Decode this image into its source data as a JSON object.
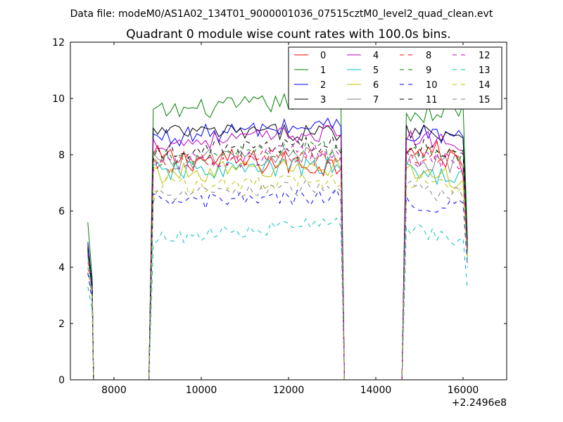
{
  "chart_data": {
    "type": "line",
    "suptitle": "Data file: modeM0/AS1A02_134T01_9000001036_07515cztM0_level2_quad_clean.evt",
    "title": "Quadrant 0 module wise count rates with 100.0s bins.",
    "xlabel": "",
    "ylabel": "",
    "x_offset_label": "+2.2496e8",
    "xlim": [
      7000,
      17000
    ],
    "ylim": [
      0,
      12
    ],
    "xticks": [
      8000,
      10000,
      12000,
      14000,
      16000
    ],
    "xtick_labels": [
      "8000",
      "10000",
      "12000",
      "14000",
      "16000"
    ],
    "yticks": [
      0,
      2,
      4,
      6,
      8,
      10,
      12
    ],
    "ytick_labels": [
      "0",
      "2",
      "4",
      "6",
      "8",
      "10",
      "12"
    ],
    "grid": false,
    "legend_position": "top-right",
    "bin_width_s": 100,
    "segments": [
      {
        "start": 7400,
        "end": 7500
      },
      {
        "start": 8900,
        "end": 13200
      },
      {
        "start": 14700,
        "end": 16100
      }
    ],
    "series": [
      {
        "name": "0",
        "color": "#ff0000",
        "style": "solid",
        "seg1": [
          4.8,
          3.2
        ],
        "seg2": [
          7.9,
          7.6
        ],
        "seg2_noise": 0.45,
        "seg3": [
          8.5,
          7.6
        ],
        "seg3_last": 4.6
      },
      {
        "name": "1",
        "color": "#008000",
        "style": "solid",
        "seg1": [
          5.6,
          3.6
        ],
        "seg2": [
          9.5,
          10.0
        ],
        "seg2_noise": 0.35,
        "seg3": [
          9.4,
          9.6
        ],
        "seg3_last": 5.0
      },
      {
        "name": "2",
        "color": "#0000ff",
        "style": "solid",
        "seg1": [
          4.9,
          3.4
        ],
        "seg2": [
          8.6,
          9.1
        ],
        "seg2_noise": 0.35,
        "seg3": [
          8.8,
          8.6
        ],
        "seg3_last": 4.8
      },
      {
        "name": "3",
        "color": "#000000",
        "style": "solid",
        "seg1": [
          4.7,
          3.3
        ],
        "seg2": [
          8.8,
          8.8
        ],
        "seg2_noise": 0.3,
        "seg3": [
          8.9,
          8.7
        ],
        "seg3_last": 4.7
      },
      {
        "name": "4",
        "color": "#bf00bf",
        "style": "solid",
        "seg1": [
          4.6,
          3.2
        ],
        "seg2": [
          8.4,
          8.8
        ],
        "seg2_noise": 0.3,
        "seg3": [
          8.6,
          8.4
        ],
        "seg3_last": 4.5
      },
      {
        "name": "5",
        "color": "#00bfbf",
        "style": "solid",
        "seg1": [
          4.4,
          3.0
        ],
        "seg2": [
          7.4,
          7.6
        ],
        "seg2_noise": 0.35,
        "seg3": [
          7.4,
          7.2
        ],
        "seg3_last": 4.3
      },
      {
        "name": "6",
        "color": "#bfbf00",
        "style": "solid",
        "seg1": [
          4.5,
          3.1
        ],
        "seg2": [
          7.3,
          7.6
        ],
        "seg2_noise": 0.35,
        "seg3": [
          7.5,
          7.0
        ],
        "seg3_last": 4.4
      },
      {
        "name": "7",
        "color": "#808080",
        "style": "solid",
        "seg1": [
          4.6,
          3.2
        ],
        "seg2": [
          7.8,
          8.0
        ],
        "seg2_noise": 0.35,
        "seg3": [
          7.9,
          7.6
        ],
        "seg3_last": 4.5
      },
      {
        "name": "8",
        "color": "#ff0000",
        "style": "dashed",
        "seg1": [
          4.5,
          3.1
        ],
        "seg2": [
          7.6,
          8.0
        ],
        "seg2_noise": 0.35,
        "seg3": [
          8.0,
          7.8
        ],
        "seg3_last": 4.6
      },
      {
        "name": "9",
        "color": "#008000",
        "style": "dashed",
        "seg1": [
          4.6,
          3.1
        ],
        "seg2": [
          7.8,
          8.2
        ],
        "seg2_noise": 0.35,
        "seg3": [
          8.2,
          7.9
        ],
        "seg3_last": 4.6
      },
      {
        "name": "10",
        "color": "#0000ff",
        "style": "dashed",
        "seg1": [
          3.8,
          2.8
        ],
        "seg2": [
          6.3,
          6.5
        ],
        "seg2_noise": 0.3,
        "seg3": [
          6.3,
          6.2
        ],
        "seg3_last": 4.0
      },
      {
        "name": "11",
        "color": "#000000",
        "style": "dashed",
        "seg1": [
          4.7,
          3.2
        ],
        "seg2": [
          8.1,
          8.4
        ],
        "seg2_noise": 0.3,
        "seg3": [
          8.3,
          8.1
        ],
        "seg3_last": 4.7
      },
      {
        "name": "12",
        "color": "#bf00bf",
        "style": "dashed",
        "seg1": [
          4.5,
          3.1
        ],
        "seg2": [
          7.7,
          8.1
        ],
        "seg2_noise": 0.35,
        "seg3": [
          7.9,
          7.8
        ],
        "seg3_last": 4.6
      },
      {
        "name": "13",
        "color": "#00bfbf",
        "style": "dashed",
        "seg1": [
          3.3,
          2.5
        ],
        "seg2": [
          5.0,
          5.6
        ],
        "seg2_noise": 0.25,
        "seg3": [
          5.4,
          4.8
        ],
        "seg3_last": 3.2
      },
      {
        "name": "14",
        "color": "#bfbf00",
        "style": "dashed",
        "seg1": [
          4.2,
          3.0
        ],
        "seg2": [
          6.9,
          7.1
        ],
        "seg2_noise": 0.3,
        "seg3": [
          7.1,
          6.8
        ],
        "seg3_last": 4.2
      },
      {
        "name": "15",
        "color": "#808080",
        "style": "dashed",
        "seg1": [
          4.0,
          2.9
        ],
        "seg2": [
          6.5,
          6.9
        ],
        "seg2_noise": 0.3,
        "seg3": [
          6.8,
          6.5
        ],
        "seg3_last": 4.1
      }
    ]
  }
}
